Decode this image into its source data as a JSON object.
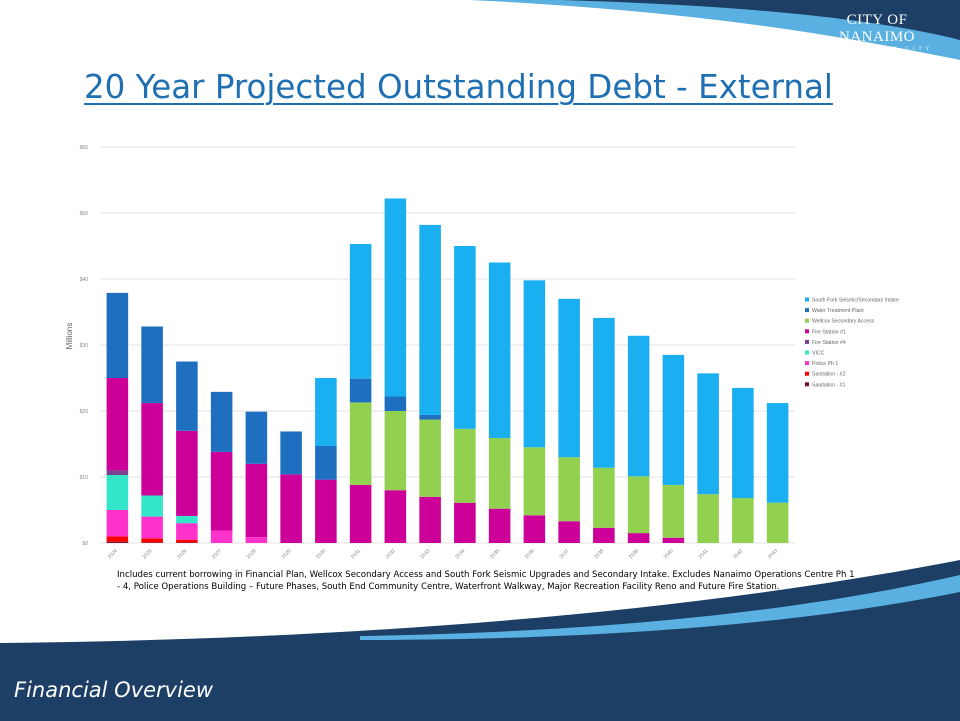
{
  "slide": {
    "title": "20 Year Projected Outstanding Debt - External",
    "footer_text": "Financial Overview",
    "logo": {
      "text": "CITY OF NANAIMO",
      "subtext": "THE HARBOUR CITY"
    },
    "footnote": "Includes current borrowing in Financial Plan, Wellcox Secondary Access and South Fork Seismic Upgrades and Secondary Intake. Excludes Nanaimo Operations Centre Ph 1 - 4, Police Operations Building – Future Phases, South End Community Centre, Waterfront Walkway, Major Recreation Facility Reno and Future Fire Station.",
    "colors": {
      "navy": "#1d3f66",
      "title_blue": "#1f6fb3",
      "light_blue": "#5ab0e0"
    }
  },
  "chart_data": {
    "type": "bar",
    "stacked": true,
    "ylabel": "Millions",
    "ylim": [
      0,
      60
    ],
    "yticks": [
      0,
      10,
      20,
      30,
      40,
      50,
      60
    ],
    "ytick_labels": [
      "$0",
      "$10",
      "$20",
      "$30",
      "$40",
      "$50",
      "$60"
    ],
    "grid": true,
    "legend_position": "right",
    "categories": [
      "2024",
      "2025",
      "2026",
      "2027",
      "2028",
      "2029",
      "2030",
      "2031",
      "2032",
      "2033",
      "2034",
      "2035",
      "2036",
      "2037",
      "2038",
      "2039",
      "2040",
      "2041",
      "2042",
      "2043"
    ],
    "series": [
      {
        "name": "Sanitation - #1",
        "color": "#7a0f2a",
        "values": [
          0.2,
          0.1,
          0.1,
          0,
          0,
          0,
          0,
          0,
          0,
          0,
          0,
          0,
          0,
          0,
          0,
          0,
          0,
          0,
          0,
          0
        ]
      },
      {
        "name": "Sanitation - #2",
        "color": "#ff0000",
        "values": [
          0.8,
          0.6,
          0.4,
          0,
          0,
          0,
          0,
          0,
          0,
          0,
          0,
          0,
          0,
          0,
          0,
          0,
          0,
          0,
          0,
          0
        ]
      },
      {
        "name": "Police Ph 1",
        "color": "#ff33cc",
        "values": [
          4,
          3.3,
          2.5,
          1.9,
          0.9,
          0,
          0,
          0,
          0,
          0,
          0,
          0,
          0,
          0,
          0,
          0,
          0,
          0,
          0,
          0
        ]
      },
      {
        "name": "VICC",
        "color": "#33e6c9",
        "values": [
          5.3,
          3.2,
          1.1,
          0,
          0,
          0,
          0,
          0,
          0,
          0,
          0,
          0,
          0,
          0,
          0,
          0,
          0,
          0,
          0,
          0
        ]
      },
      {
        "name": "Fire Station #4",
        "color": "#7b3f8f",
        "values": [
          0.7,
          0,
          0,
          0,
          0,
          0,
          0,
          0,
          0,
          0,
          0,
          0,
          0,
          0,
          0,
          0,
          0,
          0,
          0,
          0
        ]
      },
      {
        "name": "Fire Station #1",
        "color": "#cc0099",
        "values": [
          14,
          14,
          12.9,
          11.9,
          11.1,
          10.4,
          9.6,
          8.8,
          8.0,
          7.0,
          6.1,
          5.2,
          4.2,
          3.3,
          2.3,
          1.5,
          0.8,
          0,
          0,
          0
        ]
      },
      {
        "name": "Wellcox Secondary Access",
        "color": "#92d050",
        "values": [
          0,
          0,
          0,
          0,
          0,
          0,
          0,
          12.5,
          12.0,
          11.7,
          11.2,
          10.7,
          10.3,
          9.7,
          9.1,
          8.6,
          8.0,
          7.4,
          6.8,
          6.1
        ]
      },
      {
        "name": "Water Treatment Plant",
        "color": "#1f6fc0",
        "values": [
          12.9,
          11.6,
          10.5,
          9.1,
          7.9,
          6.5,
          5.1,
          3.6,
          2.2,
          0.7,
          0,
          0,
          0,
          0,
          0,
          0,
          0,
          0,
          0,
          0
        ]
      },
      {
        "name": "South Fork Seismic/Secondary Intake",
        "color": "#1aaff0",
        "values": [
          0,
          0,
          0,
          0,
          0,
          0,
          10.3,
          20.4,
          30.0,
          28.8,
          27.7,
          26.6,
          25.3,
          24.0,
          22.7,
          21.3,
          19.7,
          18.3,
          16.7,
          15.1
        ]
      }
    ]
  }
}
